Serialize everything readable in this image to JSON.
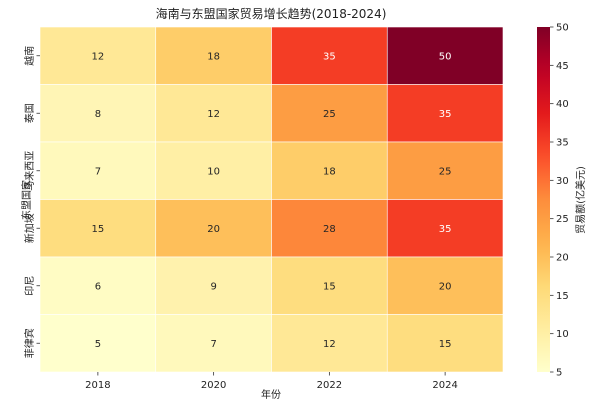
{
  "chart_data": {
    "type": "heatmap",
    "title": "海南与东盟国家贸易增长趋势(2018-2024)",
    "xlabel": "年份",
    "ylabel": "东盟国家",
    "x_categories": [
      "2018",
      "2020",
      "2022",
      "2024"
    ],
    "y_categories": [
      "越南",
      "泰国",
      "马来西亚",
      "新加坡",
      "印尼",
      "菲律宾"
    ],
    "values": [
      [
        12,
        18,
        35,
        50
      ],
      [
        8,
        12,
        25,
        35
      ],
      [
        7,
        10,
        18,
        25
      ],
      [
        15,
        20,
        28,
        35
      ],
      [
        6,
        9,
        15,
        20
      ],
      [
        5,
        7,
        12,
        15
      ]
    ],
    "colorbar": {
      "label": "贸易额(亿美元)",
      "min": 5,
      "max": 50,
      "ticks": [
        5,
        10,
        15,
        20,
        25,
        30,
        35,
        40,
        45,
        50
      ],
      "colormap": "YlOrRd"
    },
    "grid": false
  }
}
